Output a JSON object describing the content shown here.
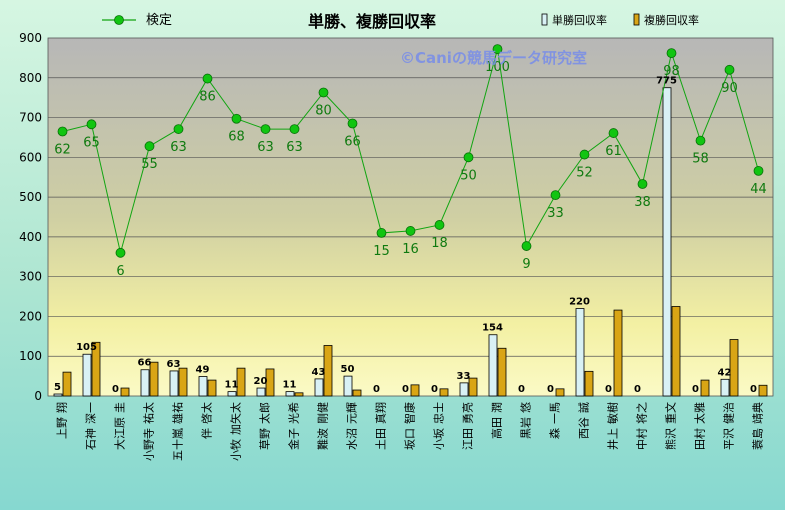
{
  "chart_data": {
    "type": "bar",
    "title": "単勝、複勝回収率",
    "watermark": "©Caniの競馬データ研究室",
    "xlabel": "",
    "ylabel": "",
    "ylim": [
      0,
      900
    ],
    "yticks": [
      0,
      100,
      200,
      300,
      400,
      500,
      600,
      700,
      800,
      900
    ],
    "grid": true,
    "legend_position": "top",
    "categories": [
      "上野 翔",
      "石神 深一",
      "大江原 圭",
      "小野寺 祐太",
      "五十嵐 雄祐",
      "伴 啓太",
      "小牧 加矢太",
      "草野 太郎",
      "金子 光希",
      "難波 剛健",
      "水沼 元輝",
      "土田 真翔",
      "坂口 智康",
      "小坂 忠士",
      "江田 勇亮",
      "高田 潤",
      "黒岩 悠",
      "森 一馬",
      "西谷 誠",
      "井上 敏樹",
      "中村 将之",
      "熊沢 重文",
      "田村 太雅",
      "平沢 健治",
      "蓑島 靖典"
    ],
    "series": [
      {
        "name": "単勝回収率",
        "type": "bar",
        "color": "#d9f1f5",
        "values": [
          5,
          105,
          0,
          66,
          63,
          49,
          11,
          20,
          11,
          43,
          50,
          0,
          0,
          0,
          33,
          154,
          0,
          0,
          220,
          0,
          0,
          775,
          0,
          42,
          0
        ]
      },
      {
        "name": "複勝回収率",
        "type": "bar",
        "color": "#d9a515",
        "values": [
          60,
          135,
          20,
          85,
          70,
          40,
          70,
          68,
          8,
          127,
          15,
          0,
          28,
          18,
          45,
          120,
          0,
          18,
          62,
          216,
          0,
          225,
          40,
          142,
          27
        ]
      },
      {
        "name": "検定",
        "type": "line",
        "color": "#11a511",
        "values": [
          62,
          65,
          6,
          55,
          63,
          86,
          68,
          63,
          63,
          80,
          66,
          15,
          16,
          18,
          50,
          100,
          9,
          33,
          52,
          61,
          38,
          98,
          58,
          90,
          44
        ],
        "plotted": [
          665,
          683,
          360,
          628,
          671,
          798,
          697,
          671,
          671,
          763,
          685,
          410,
          415,
          430,
          600,
          872,
          377,
          505,
          607,
          661,
          533,
          862,
          642,
          820,
          566
        ]
      }
    ],
    "bar_labels": [
      "5",
      "105",
      "0",
      "66",
      "63",
      "49",
      "11",
      "20",
      "11",
      "43",
      "50",
      "0",
      "0",
      "0",
      "33",
      "154",
      "0",
      "0",
      "220",
      "0",
      "0",
      "775",
      "0",
      "42",
      "0"
    ]
  }
}
